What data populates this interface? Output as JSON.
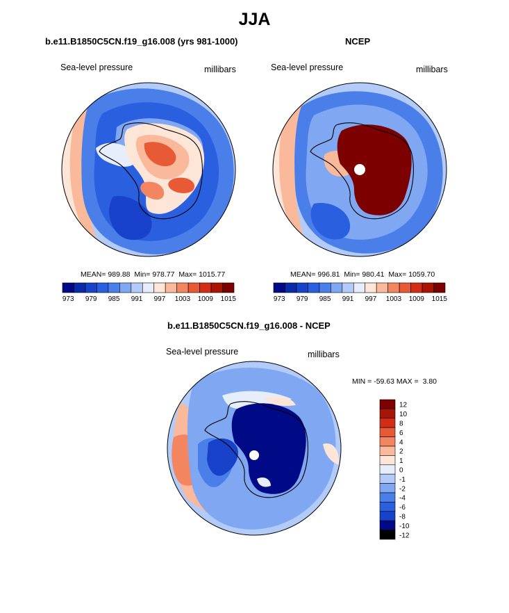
{
  "page_title": "JJA",
  "colors": {
    "palette12": [
      "#000a86",
      "#0a2aaa",
      "#1742c9",
      "#2a5fe0",
      "#4a7fea",
      "#7fa7f2",
      "#b3cbf8",
      "#e6eefc",
      "#fde5d8",
      "#f9b99a",
      "#f38660",
      "#e75a35",
      "#d22e17",
      "#a91505",
      "#7d0000"
    ],
    "diff_palette": [
      "#7d0000",
      "#a91505",
      "#d22e17",
      "#e75a35",
      "#f38660",
      "#f9b99a",
      "#fde5d8",
      "#e6eefc",
      "#b3cbf8",
      "#7fa7f2",
      "#4a7fea",
      "#2a5fe0",
      "#1742c9",
      "#000a86"
    ],
    "land_outline": "#000000"
  },
  "chart_data": [
    {
      "type": "heatmap",
      "projection": "south-polar-stereographic",
      "title": "b.e11.B1850C5CN.f19_g16.008 (yrs 981-1000)",
      "variable": "Sea-level pressure",
      "units": "millibars",
      "stats": {
        "mean_label": "MEAN=",
        "mean": "989.88",
        "min_label": "Min=",
        "min": "978.77",
        "max_label": "Max=",
        "max": "1015.77"
      },
      "colorbar": {
        "orientation": "horizontal",
        "levels": [
          973,
          976,
          979,
          982,
          985,
          988,
          991,
          994,
          997,
          1000,
          1003,
          1006,
          1009,
          1012,
          1015
        ],
        "tick_labels": [
          "973",
          "979",
          "985",
          "991",
          "997",
          "1003",
          "1009",
          "1015"
        ]
      },
      "field": {
        "ocean_ring_values": [
          982,
          985,
          988,
          994
        ],
        "interior_values": [
          1000,
          1006,
          1003,
          1009
        ],
        "missing_pole": false
      }
    },
    {
      "type": "heatmap",
      "projection": "south-polar-stereographic",
      "title": "NCEP",
      "variable": "Sea-level pressure",
      "units": "millibars",
      "stats": {
        "mean_label": "MEAN=",
        "mean": "996.81",
        "min_label": "Min=",
        "min": "980.41",
        "max_label": "Max=",
        "max": "1059.70"
      },
      "colorbar": {
        "orientation": "horizontal",
        "levels": [
          973,
          976,
          979,
          982,
          985,
          988,
          991,
          994,
          997,
          1000,
          1003,
          1006,
          1009,
          1012,
          1015
        ],
        "tick_labels": [
          "973",
          "979",
          "985",
          "991",
          "997",
          "1003",
          "1009",
          "1015"
        ]
      },
      "field": {
        "ocean_ring_values": [
          982,
          985,
          988,
          994
        ],
        "interior_values": [
          1015
        ],
        "missing_pole": true
      }
    },
    {
      "type": "heatmap",
      "projection": "south-polar-stereographic",
      "title": "b.e11.B1850C5CN.f19_g16.008 - NCEP",
      "variable": "Sea-level pressure",
      "units": "millibars",
      "stats": {
        "min_label": "MIN =",
        "min": "-59.63",
        "max_label": "MAX =",
        "max": "3.80"
      },
      "colorbar": {
        "orientation": "vertical",
        "levels": [
          12,
          10,
          8,
          6,
          4,
          2,
          1,
          0,
          -1,
          -2,
          -4,
          -6,
          -8,
          -10,
          -12
        ],
        "tick_labels": [
          "12",
          "10",
          "8",
          "6",
          "4",
          "2",
          "1",
          "0",
          "-1",
          "-2",
          "-4",
          "-6",
          "-8",
          "-10",
          "-12"
        ]
      },
      "field": {
        "ocean_values": [
          -1,
          -2,
          1
        ],
        "interior_values": [
          -12
        ],
        "missing_pole": true
      }
    }
  ]
}
